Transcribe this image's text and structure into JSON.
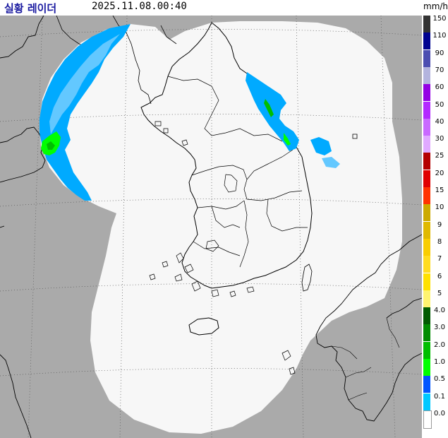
{
  "header": {
    "title": "실황 레이더",
    "timestamp": "2025.11.08.00:40",
    "unit": "mm/h"
  },
  "legend": {
    "items": [
      {
        "label": "150",
        "color": "#333333"
      },
      {
        "label": "110",
        "color": "#000390"
      },
      {
        "label": "90",
        "color": "#4c4eb1"
      },
      {
        "label": "70",
        "color": "#b3b4de"
      },
      {
        "label": "60",
        "color": "#9300e4"
      },
      {
        "label": "50",
        "color": "#b329ff"
      },
      {
        "label": "40",
        "color": "#c969ff"
      },
      {
        "label": "30",
        "color": "#e0a9ff"
      },
      {
        "label": "25",
        "color": "#b40000"
      },
      {
        "label": "20",
        "color": "#e00000"
      },
      {
        "label": "15",
        "color": "#ff3300"
      },
      {
        "label": "10",
        "color": "#ccaa00"
      },
      {
        "label": "9",
        "color": "#e0b900"
      },
      {
        "label": "8",
        "color": "#f9cd00"
      },
      {
        "label": "7",
        "color": "#ffdc1f"
      },
      {
        "label": "6",
        "color": "#ffe100"
      },
      {
        "label": "5",
        "color": "#fff36f"
      },
      {
        "label": "4.0",
        "color": "#005a00"
      },
      {
        "label": "3.0",
        "color": "#008c00"
      },
      {
        "label": "2.0",
        "color": "#00be00"
      },
      {
        "label": "1.0",
        "color": "#00ff00"
      },
      {
        "label": "0.5",
        "color": "#0055ff"
      },
      {
        "label": "0.1",
        "color": "#00c8ff"
      },
      {
        "label": "0.0",
        "color": "#ffffff"
      }
    ]
  },
  "colors": {
    "background_outside": "#aaaaaa",
    "coverage": "#f7f7f7",
    "coastline": "#000000",
    "grid": "#555555",
    "rain_light": "#00aaff",
    "rain_lighter": "#63c8ff",
    "rain_heavy": "#00ff00"
  }
}
